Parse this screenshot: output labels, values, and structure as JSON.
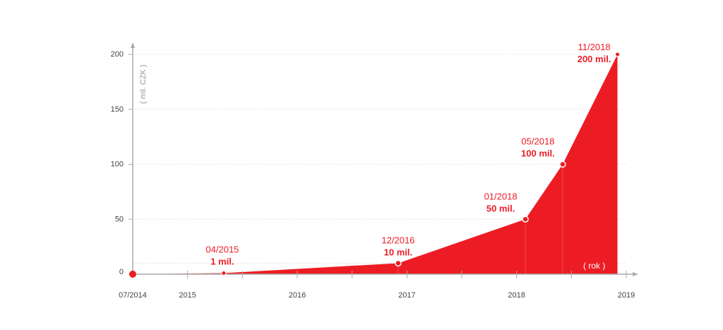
{
  "chart_data": {
    "type": "area",
    "title": "",
    "xlabel": "( rok )",
    "ylabel": "( mil. CZK )",
    "ylim": [
      0,
      200
    ],
    "xlim": [
      2014.5,
      2019
    ],
    "y_ticks": [
      0,
      50,
      100,
      150,
      200
    ],
    "y_tick_labels": [
      "0",
      "50",
      "100",
      "150",
      "200"
    ],
    "x_ticks": [
      2014.5,
      2015,
      2016,
      2017,
      2018,
      2019
    ],
    "x_tick_labels": [
      "07/2014",
      "2015",
      "2016",
      "2017",
      "2018",
      "2019"
    ],
    "grid": true,
    "color": "#ed1c24",
    "points": [
      {
        "x": 2014.5,
        "y": 0,
        "date": "07/2014",
        "value_label": ""
      },
      {
        "x": 2015.33,
        "y": 1,
        "date": "04/2015",
        "value_label": "1 mil."
      },
      {
        "x": 2016.92,
        "y": 10,
        "date": "12/2016",
        "value_label": "10 mil."
      },
      {
        "x": 2018.08,
        "y": 50,
        "date": "01/2018",
        "value_label": "50 mil."
      },
      {
        "x": 2018.42,
        "y": 100,
        "date": "05/2018",
        "value_label": "100 mil."
      },
      {
        "x": 2018.92,
        "y": 200,
        "date": "11/2018",
        "value_label": "200 mil."
      }
    ]
  }
}
